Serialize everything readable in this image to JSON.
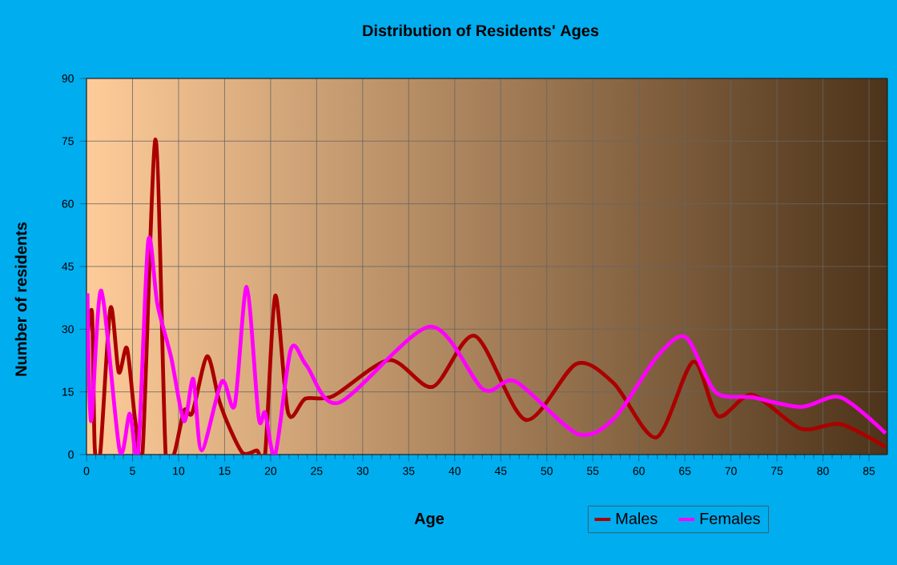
{
  "chart_data": {
    "type": "line",
    "title": "Distribution of Residents' Ages",
    "xlabel": "Age",
    "ylabel": "Number of residents",
    "xlim": [
      0,
      87
    ],
    "xticks": [
      0,
      5,
      10,
      15,
      20,
      25,
      30,
      35,
      40,
      45,
      50,
      55,
      60,
      65,
      70,
      75,
      80,
      85
    ],
    "ylim": [
      0,
      90
    ],
    "yticks": [
      0,
      15,
      30,
      45,
      60,
      75,
      90
    ],
    "grid": true,
    "legend": "bottom right",
    "marker": "none",
    "line_style": "solid",
    "series": [
      {
        "name": "Males",
        "color": "#aa0000",
        "x": [
          0,
          0.6,
          0.9,
          1.5,
          2.6,
          3.5,
          4.4,
          5.3,
          6.1,
          7.5,
          8.6,
          9.5,
          10.6,
          11.5,
          13.1,
          14.4,
          15.5,
          17,
          18.5,
          19.4,
          20.5,
          21.9,
          23.8,
          26.8,
          32.9,
          37.6,
          42.2,
          47.7,
          53.2,
          57.3,
          61.9,
          65.9,
          68.6,
          72.3,
          77.6,
          81.9,
          86.8
        ],
        "values": [
          26,
          34,
          1.5,
          0.5,
          35,
          19.7,
          25.4,
          8,
          1,
          75.4,
          0,
          0,
          10.5,
          10,
          23.5,
          13,
          6.6,
          0.3,
          1,
          0,
          38,
          10,
          13.4,
          14,
          22.6,
          16.2,
          28.4,
          8.3,
          21.7,
          17,
          4.1,
          22.2,
          9.2,
          14.3,
          6.2,
          7.3,
          1.8
        ]
      },
      {
        "name": "Females",
        "color": "#ff00ff",
        "x": [
          0.1,
          0.5,
          1.6,
          3.6,
          4.7,
          5.6,
          6.7,
          7.7,
          9.2,
          10.6,
          11.6,
          12.5,
          14.7,
          16.1,
          17.4,
          18.7,
          19.4,
          20.5,
          22.2,
          23.9,
          27.4,
          37.3,
          43.1,
          46.6,
          53.3,
          57.3,
          61.9,
          65.1,
          68.3,
          72.3,
          77.6,
          81.9,
          86.8
        ],
        "values": [
          38.6,
          8,
          39.2,
          1,
          9.8,
          0,
          51,
          36,
          23.2,
          8,
          18.1,
          1,
          17.5,
          11.8,
          40.1,
          8.9,
          10,
          0,
          25.2,
          21.3,
          12.4,
          30.6,
          15.6,
          17.5,
          5,
          8.6,
          23.2,
          28.1,
          15,
          13.7,
          11.4,
          13.7,
          5.1
        ]
      }
    ]
  }
}
